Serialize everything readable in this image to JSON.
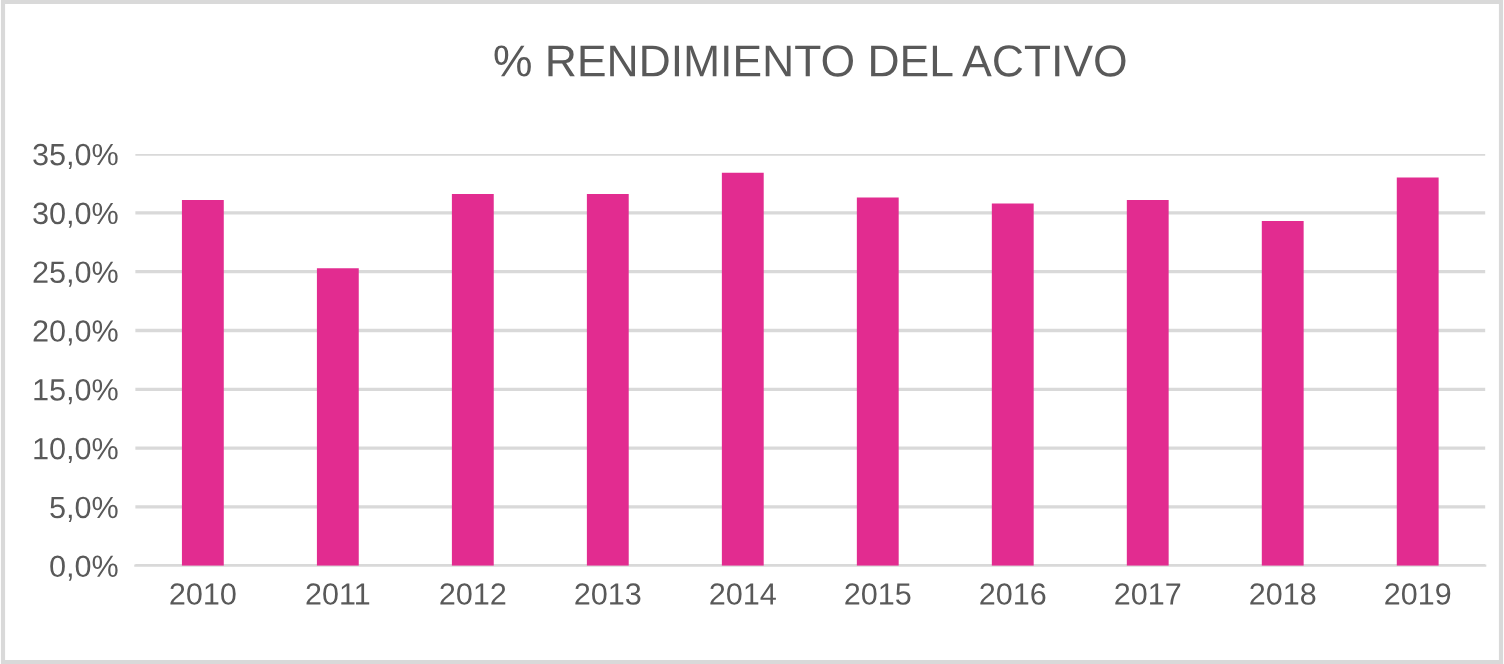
{
  "chart_data": {
    "type": "bar",
    "title": "% RENDIMIENTO DEL ACTIVO",
    "categories": [
      "2010",
      "2011",
      "2012",
      "2013",
      "2014",
      "2015",
      "2016",
      "2017",
      "2018",
      "2019"
    ],
    "values": [
      31.1,
      25.3,
      31.6,
      31.6,
      33.4,
      31.3,
      30.8,
      31.1,
      29.3,
      33.0
    ],
    "color": "#e22c90",
    "ylim": [
      0,
      35
    ],
    "yticks": [
      {
        "value": 0,
        "label": "0,0%"
      },
      {
        "value": 5,
        "label": "5,0%"
      },
      {
        "value": 10,
        "label": "10,0%"
      },
      {
        "value": 15,
        "label": "15,0%"
      },
      {
        "value": 20,
        "label": "20,0%"
      },
      {
        "value": 25,
        "label": "25,0%"
      },
      {
        "value": 30,
        "label": "30,0%"
      },
      {
        "value": 35,
        "label": "35,0%"
      }
    ],
    "grid": "y",
    "legend": false
  }
}
